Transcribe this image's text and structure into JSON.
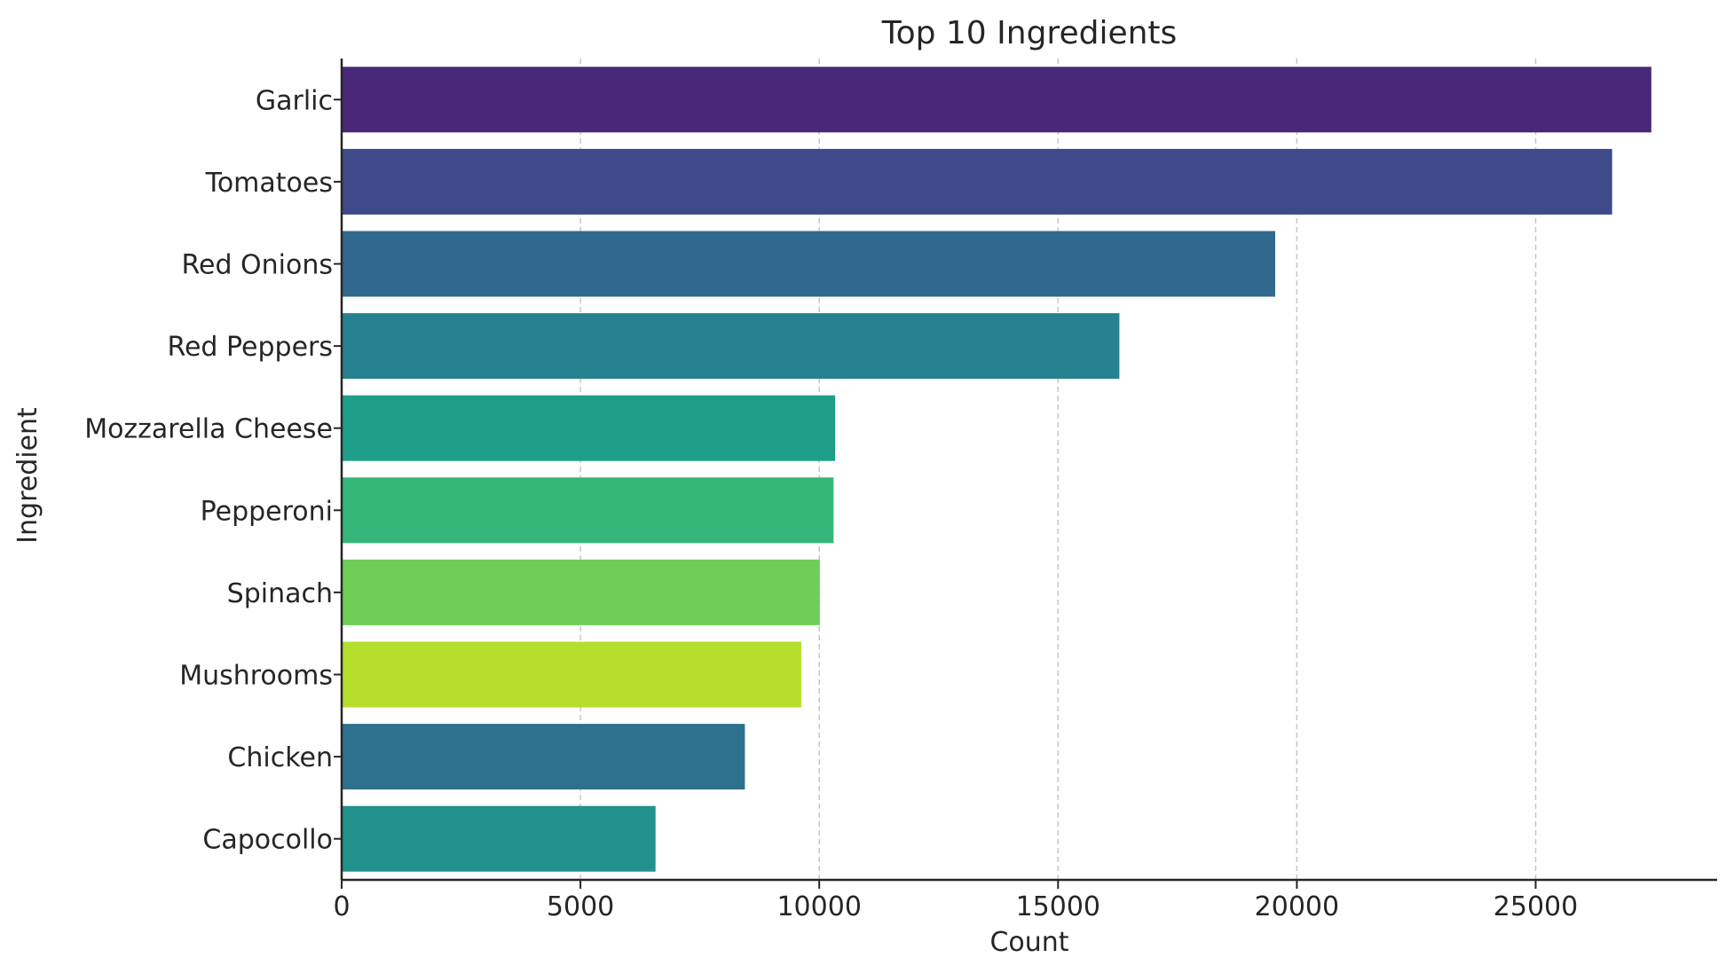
{
  "chart_data": {
    "type": "bar",
    "orientation": "horizontal",
    "title": "Top 10 Ingredients",
    "xlabel": "Count",
    "ylabel": "Ingredient",
    "categories": [
      "Garlic",
      "Tomatoes",
      "Red Onions",
      "Red Peppers",
      "Mozzarella Cheese",
      "Pepperoni",
      "Spinach",
      "Mushrooms",
      "Chicken",
      "Capocollo"
    ],
    "values": [
      27422,
      26601,
      19547,
      16284,
      10333,
      10300,
      10012,
      9624,
      8443,
      6572
    ],
    "xlim": [
      0,
      28800
    ],
    "xticks": [
      0,
      5000,
      10000,
      15000,
      20000,
      25000
    ],
    "xtick_labels": [
      "0",
      "5000",
      "10000",
      "15000",
      "20000",
      "25000"
    ],
    "grid": "x-dashed",
    "colors": [
      "#482878",
      "#3E4A89",
      "#31688E",
      "#26828E",
      "#1F9E89",
      "#35B779",
      "#6ECE58",
      "#B5DE2B",
      "#2D708E",
      "#21918C"
    ]
  }
}
